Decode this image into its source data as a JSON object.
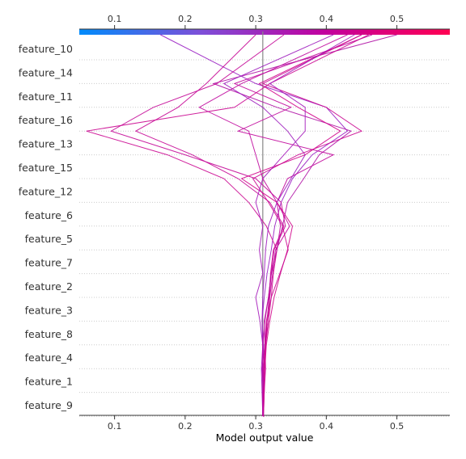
{
  "chart_data": {
    "type": "line",
    "plot": "decision",
    "xlabel": "Model output value",
    "xlim": [
      0.05,
      0.575
    ],
    "xticks": [
      0.1,
      0.2,
      0.3,
      0.4,
      0.5
    ],
    "xtick_labels": [
      "0.1",
      "0.2",
      "0.3",
      "0.4",
      "0.5"
    ],
    "base_value": 0.31,
    "features": [
      "feature_10",
      "feature_14",
      "feature_11",
      "feature_16",
      "feature_13",
      "feature_15",
      "feature_12",
      "feature_6",
      "feature_5",
      "feature_7",
      "feature_2",
      "feature_3",
      "feature_8",
      "feature_4",
      "feature_1",
      "feature_9"
    ],
    "colorbar": {
      "colors": [
        "#008bfb",
        "#7e4fd8",
        "#c1009f",
        "#ff0052"
      ],
      "range": [
        0.05,
        0.575
      ]
    },
    "grid": "dotted horizontal",
    "series": [
      {
        "color": "#9a20c3",
        "values": [
          0.31,
          0.31,
          0.31,
          0.31,
          0.311,
          0.309,
          0.312,
          0.316,
          0.322,
          0.327,
          0.336,
          0.352,
          0.38,
          0.43,
          0.4,
          0.3,
          0.165
        ]
      },
      {
        "color": "#b012a5",
        "values": [
          0.31,
          0.31,
          0.311,
          0.309,
          0.313,
          0.312,
          0.318,
          0.322,
          0.33,
          0.338,
          0.345,
          0.368,
          0.39,
          0.435,
          0.33,
          0.24,
          0.5
        ]
      },
      {
        "color": "#c1089c",
        "values": [
          0.31,
          0.31,
          0.31,
          0.312,
          0.314,
          0.316,
          0.32,
          0.324,
          0.328,
          0.348,
          0.33,
          0.345,
          0.41,
          0.275,
          0.35,
          0.27,
          0.465
        ]
      },
      {
        "color": "#c70896",
        "values": [
          0.31,
          0.31,
          0.311,
          0.311,
          0.313,
          0.316,
          0.319,
          0.321,
          0.325,
          0.34,
          0.32,
          0.275,
          0.21,
          0.13,
          0.19,
          0.23,
          0.3
        ]
      },
      {
        "color": "#c40a98",
        "values": [
          0.31,
          0.311,
          0.312,
          0.314,
          0.313,
          0.318,
          0.319,
          0.322,
          0.326,
          0.342,
          0.336,
          0.3,
          0.2,
          0.095,
          0.155,
          0.245,
          0.34
        ]
      },
      {
        "color": "#cb0a92",
        "values": [
          0.31,
          0.31,
          0.312,
          0.312,
          0.314,
          0.318,
          0.322,
          0.325,
          0.33,
          0.315,
          0.29,
          0.255,
          0.175,
          0.06,
          0.27,
          0.32,
          0.46
        ]
      },
      {
        "color": "#9f1ebe",
        "values": [
          0.31,
          0.31,
          0.311,
          0.31,
          0.31,
          0.309,
          0.31,
          0.312,
          0.314,
          0.318,
          0.33,
          0.35,
          0.37,
          0.345,
          0.31,
          0.255,
          0.41
        ]
      },
      {
        "color": "#d2068c",
        "values": [
          0.31,
          0.31,
          0.311,
          0.313,
          0.315,
          0.32,
          0.326,
          0.335,
          0.345,
          0.352,
          0.33,
          0.28,
          0.37,
          0.42,
          0.36,
          0.305,
          0.45
        ]
      },
      {
        "color": "#cb0a92",
        "values": [
          0.31,
          0.311,
          0.312,
          0.312,
          0.313,
          0.315,
          0.322,
          0.334,
          0.346,
          0.338,
          0.318,
          0.296,
          0.36,
          0.45,
          0.4,
          0.31,
          0.45
        ]
      },
      {
        "color": "#a51aba",
        "values": [
          0.31,
          0.31,
          0.309,
          0.308,
          0.31,
          0.306,
          0.3,
          0.31,
          0.305,
          0.31,
          0.3,
          0.31,
          0.34,
          0.37,
          0.37,
          0.32,
          0.44
        ]
      },
      {
        "color": "#c00a9e",
        "values": [
          0.31,
          0.31,
          0.31,
          0.31,
          0.31,
          0.313,
          0.318,
          0.322,
          0.33,
          0.335,
          0.33,
          0.31,
          0.3,
          0.29,
          0.22,
          0.28,
          0.43
        ]
      }
    ]
  }
}
